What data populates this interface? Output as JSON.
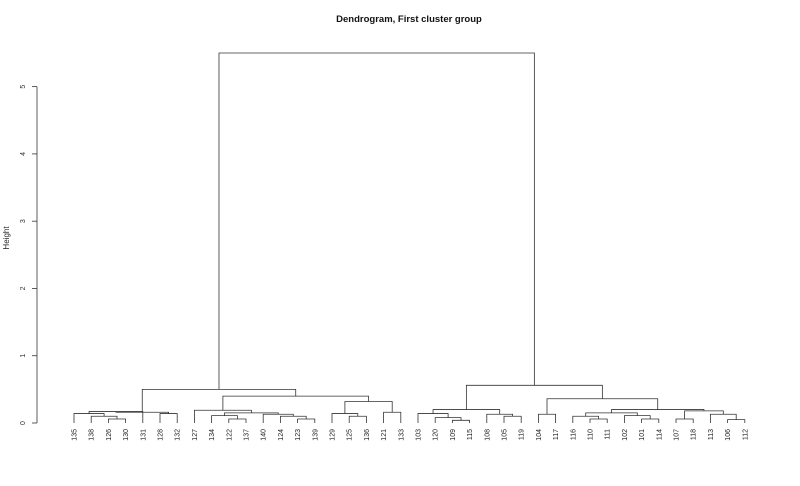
{
  "chart_data": {
    "type": "dendrogram",
    "title": "Dendrogram, First cluster group",
    "xlabel": "",
    "ylabel": "Height",
    "ylim": [
      0,
      5.5
    ],
    "y_ticks": [
      0,
      1,
      2,
      3,
      4,
      5
    ],
    "leaves": [
      "135",
      "138",
      "126",
      "130",
      "131",
      "128",
      "132",
      "127",
      "134",
      "122",
      "137",
      "140",
      "124",
      "123",
      "139",
      "129",
      "125",
      "136",
      "121",
      "133",
      "103",
      "120",
      "109",
      "115",
      "108",
      "105",
      "119",
      "104",
      "117",
      "116",
      "110",
      "111",
      "102",
      "101",
      "114",
      "107",
      "118",
      "113",
      "106",
      "112"
    ],
    "merges": [
      {
        "left": "126",
        "right": "130",
        "height": 0.06
      },
      {
        "left": "138",
        "right": "c1",
        "height": 0.1
      },
      {
        "left": "135",
        "right": "c2",
        "height": 0.14
      },
      {
        "left": "c3",
        "right": "131",
        "height": 0.17
      },
      {
        "left": "128",
        "right": "132",
        "height": 0.14
      },
      {
        "left": "c4",
        "right": "c5",
        "height": 0.16
      },
      {
        "left": "122",
        "right": "137",
        "height": 0.06
      },
      {
        "left": "134",
        "right": "c7",
        "height": 0.11
      },
      {
        "left": "123",
        "right": "139",
        "height": 0.06
      },
      {
        "left": "124",
        "right": "c9",
        "height": 0.1
      },
      {
        "left": "140",
        "right": "c10",
        "height": 0.13
      },
      {
        "left": "c8",
        "right": "c11",
        "height": 0.15
      },
      {
        "left": "127",
        "right": "c12",
        "height": 0.19
      },
      {
        "left": "125",
        "right": "136",
        "height": 0.1
      },
      {
        "left": "129",
        "right": "c14",
        "height": 0.14
      },
      {
        "left": "121",
        "right": "133",
        "height": 0.16
      },
      {
        "left": "c15",
        "right": "c16",
        "height": 0.32
      },
      {
        "left": "c13",
        "right": "c17",
        "height": 0.4
      },
      {
        "left": "c6",
        "right": "c18",
        "height": 0.5
      },
      {
        "left": "109",
        "right": "115",
        "height": 0.04
      },
      {
        "left": "120",
        "right": "c20",
        "height": 0.08
      },
      {
        "left": "103",
        "right": "c21",
        "height": 0.14
      },
      {
        "left": "105",
        "right": "119",
        "height": 0.1
      },
      {
        "left": "108",
        "right": "c23",
        "height": 0.13
      },
      {
        "left": "c22",
        "right": "c24",
        "height": 0.2
      },
      {
        "left": "104",
        "right": "117",
        "height": 0.13
      },
      {
        "left": "110",
        "right": "111",
        "height": 0.06
      },
      {
        "left": "116",
        "right": "c27",
        "height": 0.1
      },
      {
        "left": "101",
        "right": "114",
        "height": 0.06
      },
      {
        "left": "102",
        "right": "c29",
        "height": 0.11
      },
      {
        "left": "c28",
        "right": "c30",
        "height": 0.15
      },
      {
        "left": "107",
        "right": "118",
        "height": 0.06
      },
      {
        "left": "106",
        "right": "112",
        "height": 0.05
      },
      {
        "left": "113",
        "right": "c33",
        "height": 0.13
      },
      {
        "left": "c32",
        "right": "c34",
        "height": 0.18
      },
      {
        "left": "c31",
        "right": "c35",
        "height": 0.2
      },
      {
        "left": "c26",
        "right": "c36",
        "height": 0.36
      },
      {
        "left": "c25",
        "right": "c37",
        "height": 0.56
      },
      {
        "left": "c19",
        "right": "c38",
        "height": 5.5
      }
    ]
  }
}
